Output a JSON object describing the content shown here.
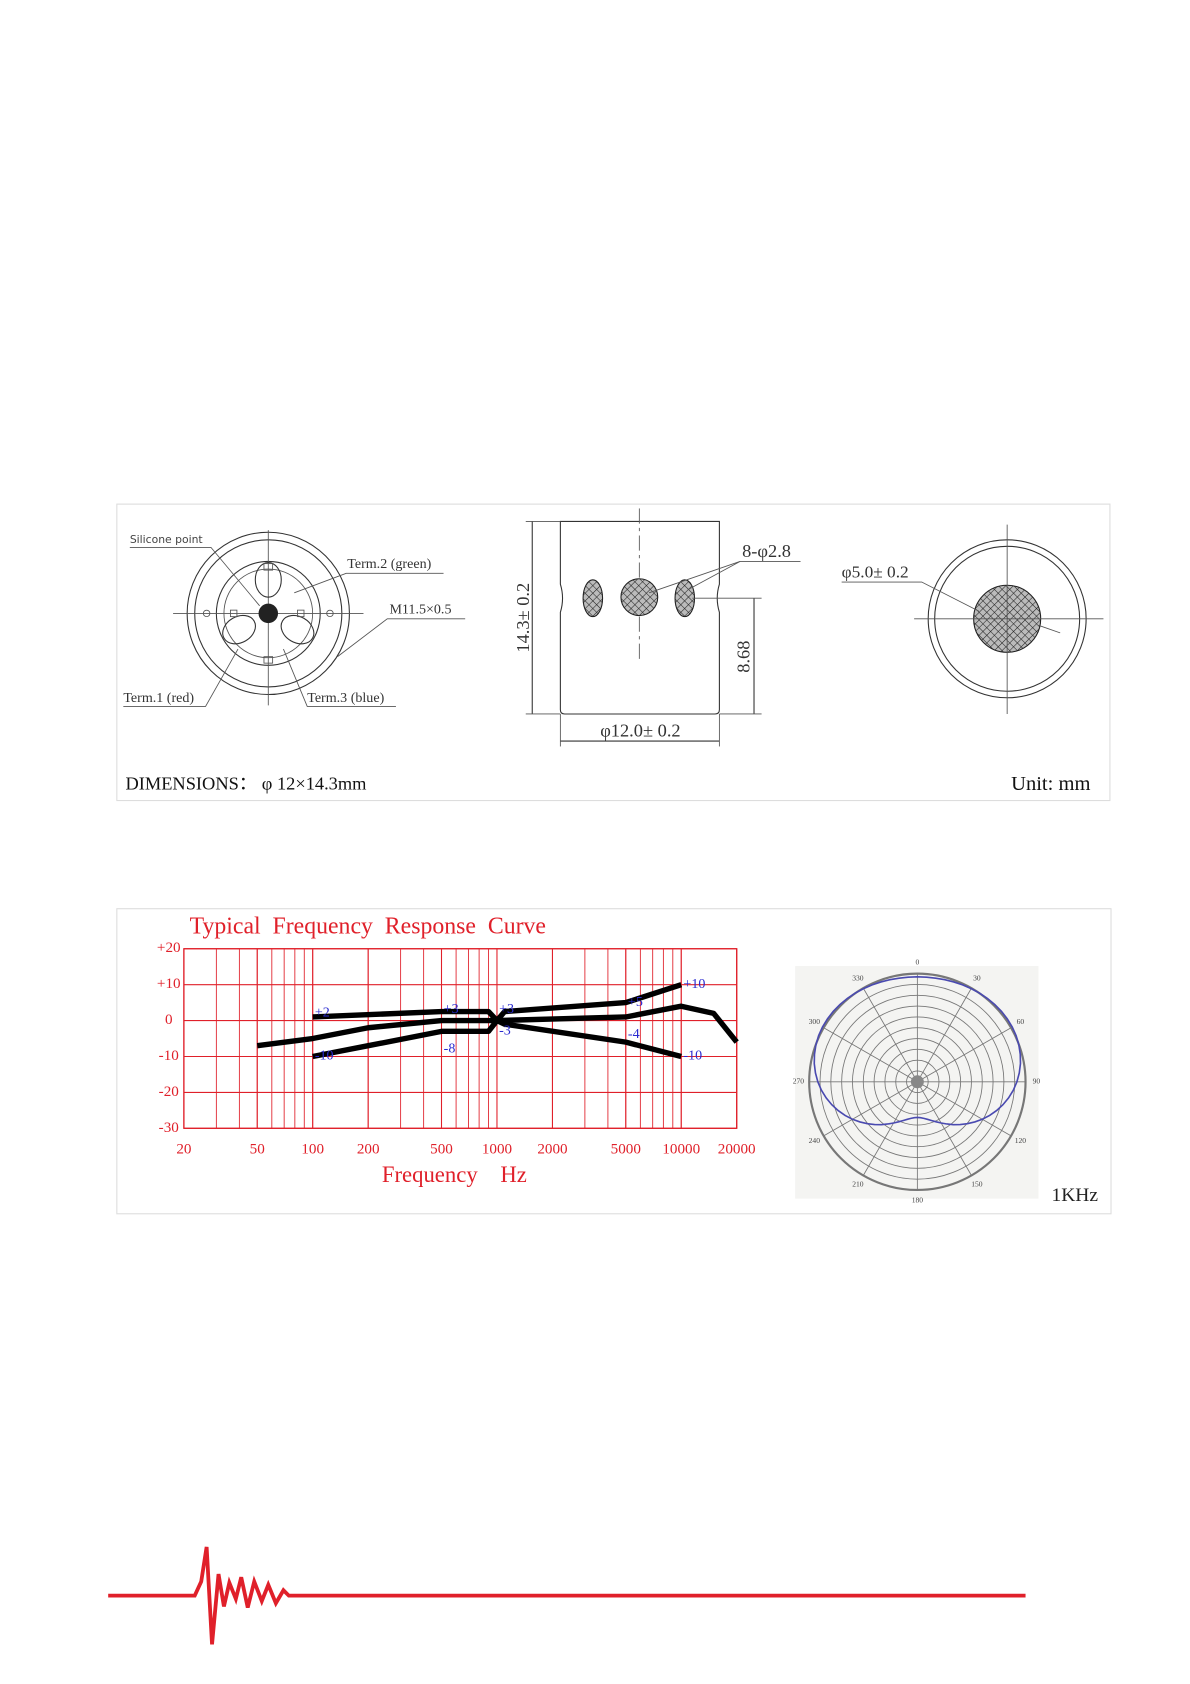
{
  "dimensions": {
    "silicone_point": "Silicone point",
    "term2": "Term.2 (green)",
    "thread": "M11.5×0.5",
    "term1": "Term.1 (red)",
    "term3": "Term.3 (blue)",
    "height": "14.3± 0.2",
    "holes": "8-φ2.8",
    "hole_height": "8.68",
    "diameter": "φ12.0± 0.2",
    "mesh_diameter": "φ5.0± 0.2",
    "caption": "DIMENSIONS：  φ 12×14.3mm",
    "unit": "Unit: mm"
  },
  "frequency_response": {
    "title": "Typical  Frequency  Response  Curve",
    "x_label": "Frequency    Hz",
    "log_x": true,
    "grid": true,
    "grid_color": "#e0202a",
    "curve_color": "#000000",
    "annotation_color": "#2a2ad0",
    "xlim": [
      20,
      20000
    ],
    "xticks": [
      20,
      50,
      100,
      200,
      500,
      1000,
      2000,
      5000,
      10000,
      20000
    ],
    "ylim": [
      -30,
      20
    ],
    "yticks": [
      {
        "value": 20,
        "label": "+20"
      },
      {
        "value": 10,
        "label": "+10"
      },
      0,
      -10,
      -20,
      -30
    ],
    "series": [
      {
        "x": [
          100,
          500,
          900,
          1000,
          1100,
          5000,
          10000
        ],
        "values": [
          1,
          2.5,
          2.5,
          0,
          2.5,
          5,
          10
        ]
      },
      {
        "x": [
          50,
          100,
          200,
          500,
          900,
          1000,
          5000,
          10000,
          15000,
          20000
        ],
        "values": [
          -7,
          -5,
          -2,
          0,
          0,
          0,
          1,
          4,
          2,
          -6
        ]
      },
      {
        "x": [
          100,
          200,
          500,
          900,
          1000,
          1100,
          5000,
          10000
        ],
        "values": [
          -10,
          -7,
          -3,
          -3,
          0,
          -1,
          -6,
          -10
        ]
      }
    ],
    "annotations": [
      {
        "x": 100,
        "value": 2,
        "label": "+2"
      },
      {
        "x": 500,
        "value": 3,
        "label": "+3"
      },
      {
        "x": 1000,
        "value": 3,
        "label": "+3"
      },
      {
        "x": 5000,
        "value": 5,
        "label": "+5"
      },
      {
        "x": 10000,
        "value": 10,
        "label": "+10"
      },
      {
        "x": 100,
        "value": -10,
        "label": "-10"
      },
      {
        "x": 500,
        "value": -8,
        "label": "-8"
      },
      {
        "x": 1000,
        "value": -3,
        "label": "-3"
      },
      {
        "x": 5000,
        "value": -4,
        "label": "-4"
      },
      {
        "x": 10000,
        "value": -10,
        "label": "-10"
      }
    ]
  },
  "polar": {
    "angle_labels": [
      "0",
      "30",
      "60",
      "90",
      "120",
      "150",
      "180",
      "210",
      "240",
      "270",
      "300",
      "330"
    ],
    "frequency": "1KHz"
  }
}
